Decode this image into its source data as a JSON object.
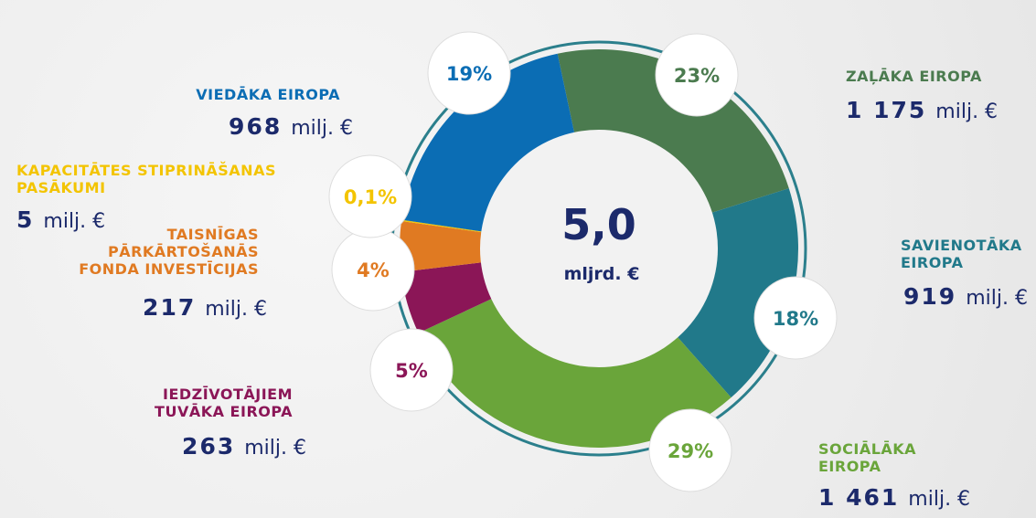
{
  "chart_data": {
    "type": "donut",
    "categories": [
      "ZAĻĀKA EIROPA",
      "SAVIENOTĀKA EIROPA",
      "SOCIĀLĀKA EIROPA",
      "IEDZĪVOTĀJIEM TUVĀKA EIROPA",
      "TAISNĪGAS PĀRKĀRTOŠANĀS FONDA INVESTĪCIJAS",
      "KAPACITĀTES STIPRINĀŠANAS PASĀKUMI",
      "VIEDĀKA EIROPA"
    ],
    "values": [
      23,
      18,
      29,
      5,
      4,
      0.1,
      19
    ],
    "value_labels": [
      "23%",
      "18%",
      "29%",
      "5%",
      "4%",
      "0,1%",
      "19%"
    ],
    "colors": [
      "#4b7b4f",
      "#21798a",
      "#6aa53a",
      "#8b1657",
      "#e07a22",
      "#f3c400",
      "#0b6db4"
    ],
    "amounts": [
      1175,
      919,
      1461,
      263,
      217,
      5,
      968
    ],
    "amount_labels": [
      "1 175",
      "919",
      "1 461",
      "263",
      "217",
      "5",
      "968"
    ],
    "amount_unit": "milj. €",
    "total": 5.0,
    "total_label": "5,0",
    "total_unit": "mljrd. €"
  }
}
